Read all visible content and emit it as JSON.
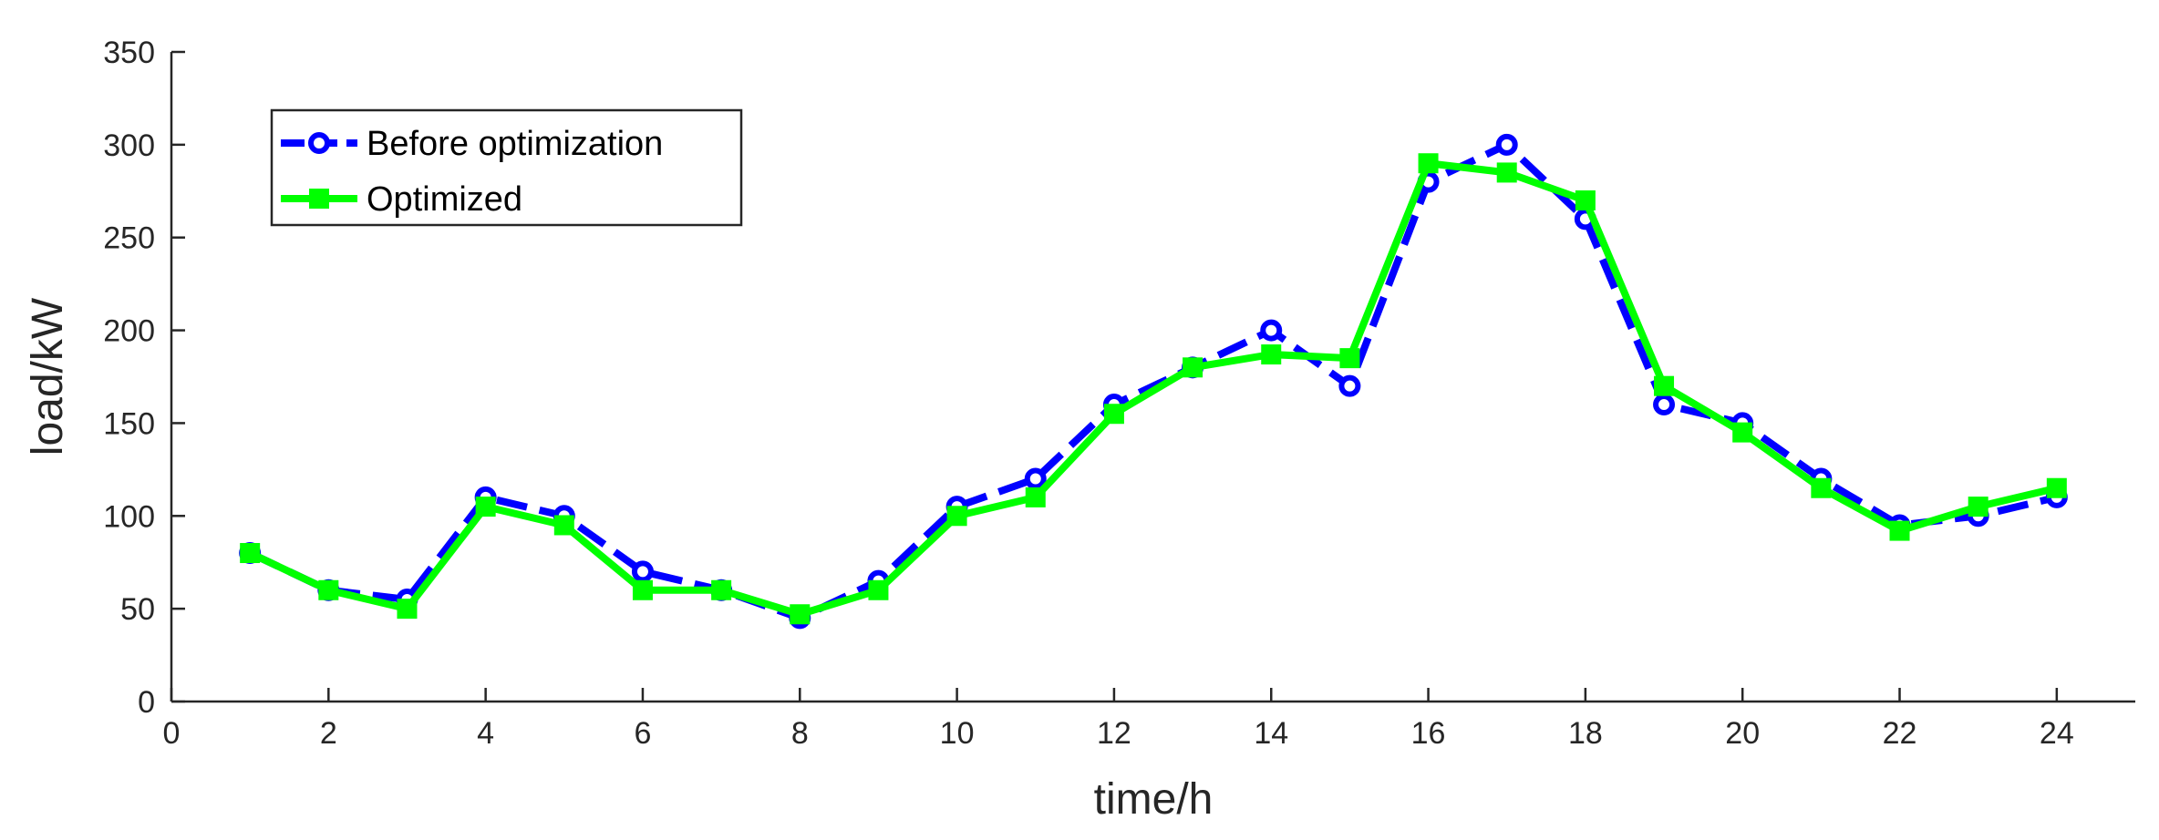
{
  "chart_data": {
    "type": "line",
    "xlabel": "time/h",
    "ylabel": "load/kW",
    "xlim": [
      0,
      25
    ],
    "ylim": [
      0,
      350
    ],
    "x_ticks": [
      0,
      2,
      4,
      6,
      8,
      10,
      12,
      14,
      16,
      18,
      20,
      22,
      24
    ],
    "y_ticks": [
      0,
      50,
      100,
      150,
      200,
      250,
      300,
      350
    ],
    "grid": false,
    "legend_position": "top-left",
    "x": [
      1,
      2,
      3,
      4,
      5,
      6,
      7,
      8,
      9,
      10,
      11,
      12,
      13,
      14,
      15,
      16,
      17,
      18,
      19,
      20,
      21,
      22,
      23,
      24
    ],
    "series": [
      {
        "name": "Before optimization",
        "color": "#0000ff",
        "line_style": "dashed",
        "marker": "circle",
        "values": [
          80,
          60,
          55,
          110,
          100,
          70,
          60,
          45,
          65,
          105,
          120,
          160,
          180,
          200,
          170,
          280,
          300,
          260,
          160,
          150,
          120,
          95,
          100,
          110
        ]
      },
      {
        "name": "Optimized",
        "color": "#00ff00",
        "line_style": "solid",
        "marker": "square",
        "values": [
          80,
          60,
          50,
          105,
          95,
          60,
          60,
          47,
          60,
          100,
          110,
          155,
          180,
          187,
          185,
          290,
          285,
          270,
          170,
          145,
          115,
          92,
          105,
          115
        ]
      }
    ]
  }
}
